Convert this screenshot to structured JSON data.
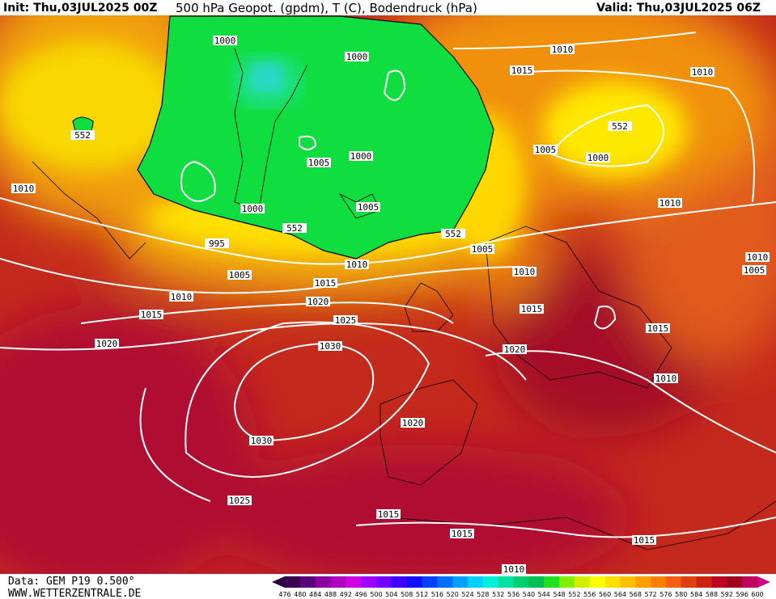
{
  "header": {
    "init": "Init: Thu,03JUL2025 00Z",
    "title": "500 hPa Geopot. (gpdm), T (C), Bodendruck (hPa)",
    "valid": "Valid: Thu,03JUL2025 06Z"
  },
  "isobar_labels": [
    "1000",
    "1000",
    "1010",
    "1015",
    "1010",
    "552",
    "552",
    "1005",
    "1000",
    "1000",
    "1005",
    "1010",
    "1000",
    "1005",
    "1010",
    "552",
    "552",
    "995",
    "1010",
    "1005",
    "1010",
    "1010",
    "1005",
    "1005",
    "1015",
    "1010",
    "1020",
    "1015",
    "1015",
    "1025",
    "1015",
    "1020",
    "1030",
    "1020",
    "1010",
    "1020",
    "1030",
    "1025",
    "1015",
    "1015",
    "1015",
    "1010"
  ],
  "footer": {
    "data": "Data: GEM P19 0.500°",
    "site": "WWW.WETTERZENTRALE.DE"
  },
  "colorbar": {
    "labels": [
      476,
      480,
      484,
      488,
      492,
      496,
      500,
      504,
      508,
      512,
      516,
      520,
      524,
      528,
      532,
      536,
      540,
      544,
      548,
      552,
      556,
      560,
      564,
      568,
      572,
      576,
      580,
      584,
      588,
      592,
      596,
      600
    ],
    "colors": [
      "#3c0050",
      "#5a007a",
      "#8a00a0",
      "#b000c0",
      "#d000e0",
      "#a000ff",
      "#7000ff",
      "#4000ff",
      "#1010ff",
      "#0040ff",
      "#0070ff",
      "#00a0ff",
      "#00d0ff",
      "#00f0e0",
      "#00e0a0",
      "#00d070",
      "#00c050",
      "#20e020",
      "#80f000",
      "#d0f000",
      "#ffff00",
      "#ffe000",
      "#ffc000",
      "#ffa000",
      "#ff8000",
      "#f06010",
      "#e04010",
      "#d02010",
      "#c00020",
      "#a00020",
      "#c00060"
    ]
  }
}
